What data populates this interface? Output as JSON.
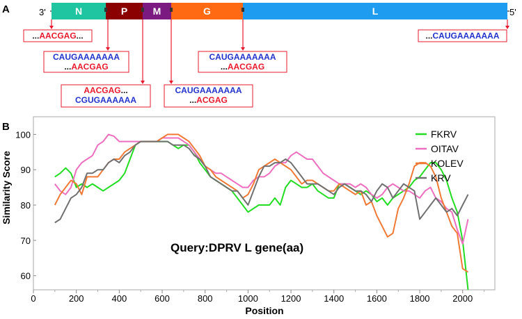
{
  "panel_a": {
    "label": "A",
    "left_end": "3'",
    "right_end": "5'",
    "genes": [
      {
        "name": "N",
        "color": "#1ec5a0"
      },
      {
        "name": "P",
        "color": "#8b0000"
      },
      {
        "name": "M",
        "color": "#7b1a80"
      },
      {
        "name": "G",
        "color": "#ff6a13"
      },
      {
        "name": "L",
        "color": "#1e9cf0"
      }
    ],
    "annotations": [
      {
        "lines": [
          {
            "parts": [
              {
                "t": "...",
                "c": "#111111"
              },
              {
                "t": "AACGAG",
                "c": "#e8192c"
              },
              {
                "t": "...",
                "c": "#111111"
              }
            ]
          }
        ]
      },
      {
        "lines": [
          {
            "parts": [
              {
                "t": "CAUGAAAAAAA",
                "c": "#2233cc"
              }
            ]
          },
          {
            "parts": [
              {
                "t": "...",
                "c": "#111111"
              },
              {
                "t": "AACGAG",
                "c": "#e8192c"
              }
            ]
          }
        ]
      },
      {
        "lines": [
          {
            "parts": [
              {
                "t": "AACGAG",
                "c": "#e8192c"
              },
              {
                "t": "...",
                "c": "#111111"
              }
            ]
          },
          {
            "parts": [
              {
                "t": "CGUGAAAAAA",
                "c": "#2233cc"
              }
            ]
          }
        ]
      },
      {
        "lines": [
          {
            "parts": [
              {
                "t": "CAUGAAAAAAA",
                "c": "#2233cc"
              }
            ]
          },
          {
            "parts": [
              {
                "t": "...",
                "c": "#111111"
              },
              {
                "t": "ACGAG",
                "c": "#e8192c"
              }
            ]
          }
        ]
      },
      {
        "lines": [
          {
            "parts": [
              {
                "t": "CAUGAAAAAAA",
                "c": "#2233cc"
              }
            ]
          },
          {
            "parts": [
              {
                "t": "...",
                "c": "#111111"
              },
              {
                "t": "AACGAG",
                "c": "#e8192c"
              }
            ]
          }
        ]
      },
      {
        "lines": [
          {
            "parts": [
              {
                "t": "...",
                "c": "#111111"
              },
              {
                "t": "CAUGAAAAAAA",
                "c": "#2233cc"
              }
            ]
          }
        ]
      }
    ]
  },
  "panel_b": {
    "label": "B",
    "query_text": "Query:DPRV L gene(aa)"
  },
  "chart_data": {
    "type": "line",
    "title": "",
    "xlabel": "Position",
    "ylabel": "Similarity Score",
    "xlim": [
      0,
      2150
    ],
    "ylim": [
      56,
      105
    ],
    "xticks": [
      0,
      200,
      400,
      600,
      800,
      1000,
      1200,
      1400,
      1600,
      1800,
      2000
    ],
    "yticks": [
      60,
      70,
      80,
      90,
      100
    ],
    "grid": false,
    "legend_position": "top-right",
    "x": [
      100,
      125,
      150,
      175,
      200,
      225,
      250,
      275,
      300,
      325,
      350,
      375,
      400,
      425,
      450,
      475,
      500,
      525,
      550,
      575,
      600,
      625,
      650,
      675,
      700,
      725,
      750,
      775,
      800,
      825,
      850,
      875,
      900,
      925,
      950,
      975,
      1000,
      1025,
      1050,
      1075,
      1100,
      1125,
      1150,
      1175,
      1200,
      1225,
      1250,
      1275,
      1300,
      1325,
      1350,
      1375,
      1400,
      1425,
      1450,
      1475,
      1500,
      1525,
      1550,
      1575,
      1600,
      1625,
      1650,
      1675,
      1700,
      1725,
      1750,
      1775,
      1800,
      1825,
      1850,
      1875,
      1900,
      1925,
      1950,
      1975,
      2000,
      2025
    ],
    "series": [
      {
        "name": "FKRV",
        "color": "#22dd22",
        "values": [
          88,
          89,
          90.5,
          89,
          85,
          86,
          85,
          86,
          85,
          84,
          85,
          86,
          87,
          89,
          93,
          97,
          98,
          98,
          98,
          98,
          98,
          98,
          97,
          96,
          97,
          97,
          95,
          92,
          90,
          88,
          87,
          86,
          85,
          84,
          82,
          80,
          78,
          79,
          80,
          80,
          80,
          82,
          80,
          85,
          87,
          86,
          85,
          85,
          86,
          84,
          83,
          82,
          82,
          86,
          86,
          85,
          84,
          83,
          84,
          83,
          81,
          82,
          80,
          82,
          83,
          84,
          85,
          87,
          88,
          90,
          92,
          92,
          90,
          87,
          82,
          78,
          70,
          56
        ]
      },
      {
        "name": "OITAV",
        "color": "#ee6ec0",
        "values": [
          86,
          84,
          83,
          85,
          90,
          92,
          93,
          94,
          97,
          98,
          100,
          99.5,
          98,
          98,
          98,
          98,
          98,
          98,
          98,
          98,
          99,
          99,
          99,
          99,
          98,
          97,
          95,
          93,
          91,
          90,
          89,
          89,
          88,
          87,
          86,
          85,
          85,
          87,
          88,
          88,
          89,
          91,
          92,
          92,
          94,
          95,
          94,
          93,
          93,
          91,
          89,
          88,
          87,
          86,
          86,
          86,
          85,
          86,
          85,
          83,
          82,
          83,
          85,
          86,
          85,
          84,
          84,
          83,
          82,
          84,
          85,
          82,
          81,
          79,
          78,
          73,
          69,
          76
        ]
      },
      {
        "name": "KOLEV",
        "color": "#f07a35",
        "values": [
          80,
          83,
          85,
          87,
          86,
          83,
          88,
          88,
          88,
          90,
          92,
          93,
          93,
          95,
          96,
          97,
          98,
          98,
          98,
          98,
          99,
          100,
          100,
          100,
          99,
          98,
          96,
          94,
          91,
          90,
          88,
          87,
          86,
          85,
          84,
          82,
          83,
          86,
          90,
          91,
          92,
          93,
          92,
          91,
          90,
          88,
          86,
          87,
          87,
          86,
          85,
          84,
          84,
          86,
          85,
          84,
          83,
          84,
          80,
          81,
          77,
          74,
          71,
          72,
          79,
          82,
          86,
          91,
          92,
          92,
          91,
          88,
          82,
          78,
          74,
          72,
          62,
          61
        ]
      },
      {
        "name": "KRV",
        "color": "#707070",
        "values": [
          75,
          76,
          79,
          82,
          83,
          85,
          89,
          89,
          90,
          90,
          92,
          93,
          92,
          94,
          95,
          97,
          98,
          98,
          98,
          98,
          98,
          98,
          97,
          97,
          97,
          96,
          94,
          93,
          91,
          88,
          87,
          86,
          85,
          84,
          84,
          82,
          80,
          84,
          88,
          91,
          91,
          92,
          92,
          93,
          92,
          90,
          88,
          86,
          86,
          86,
          85,
          84,
          83,
          85,
          86,
          85,
          84,
          84,
          83,
          81,
          84,
          86,
          85,
          82,
          84,
          86,
          85,
          84,
          76,
          78,
          80,
          82,
          80,
          78,
          79,
          77,
          80,
          83
        ]
      }
    ]
  }
}
